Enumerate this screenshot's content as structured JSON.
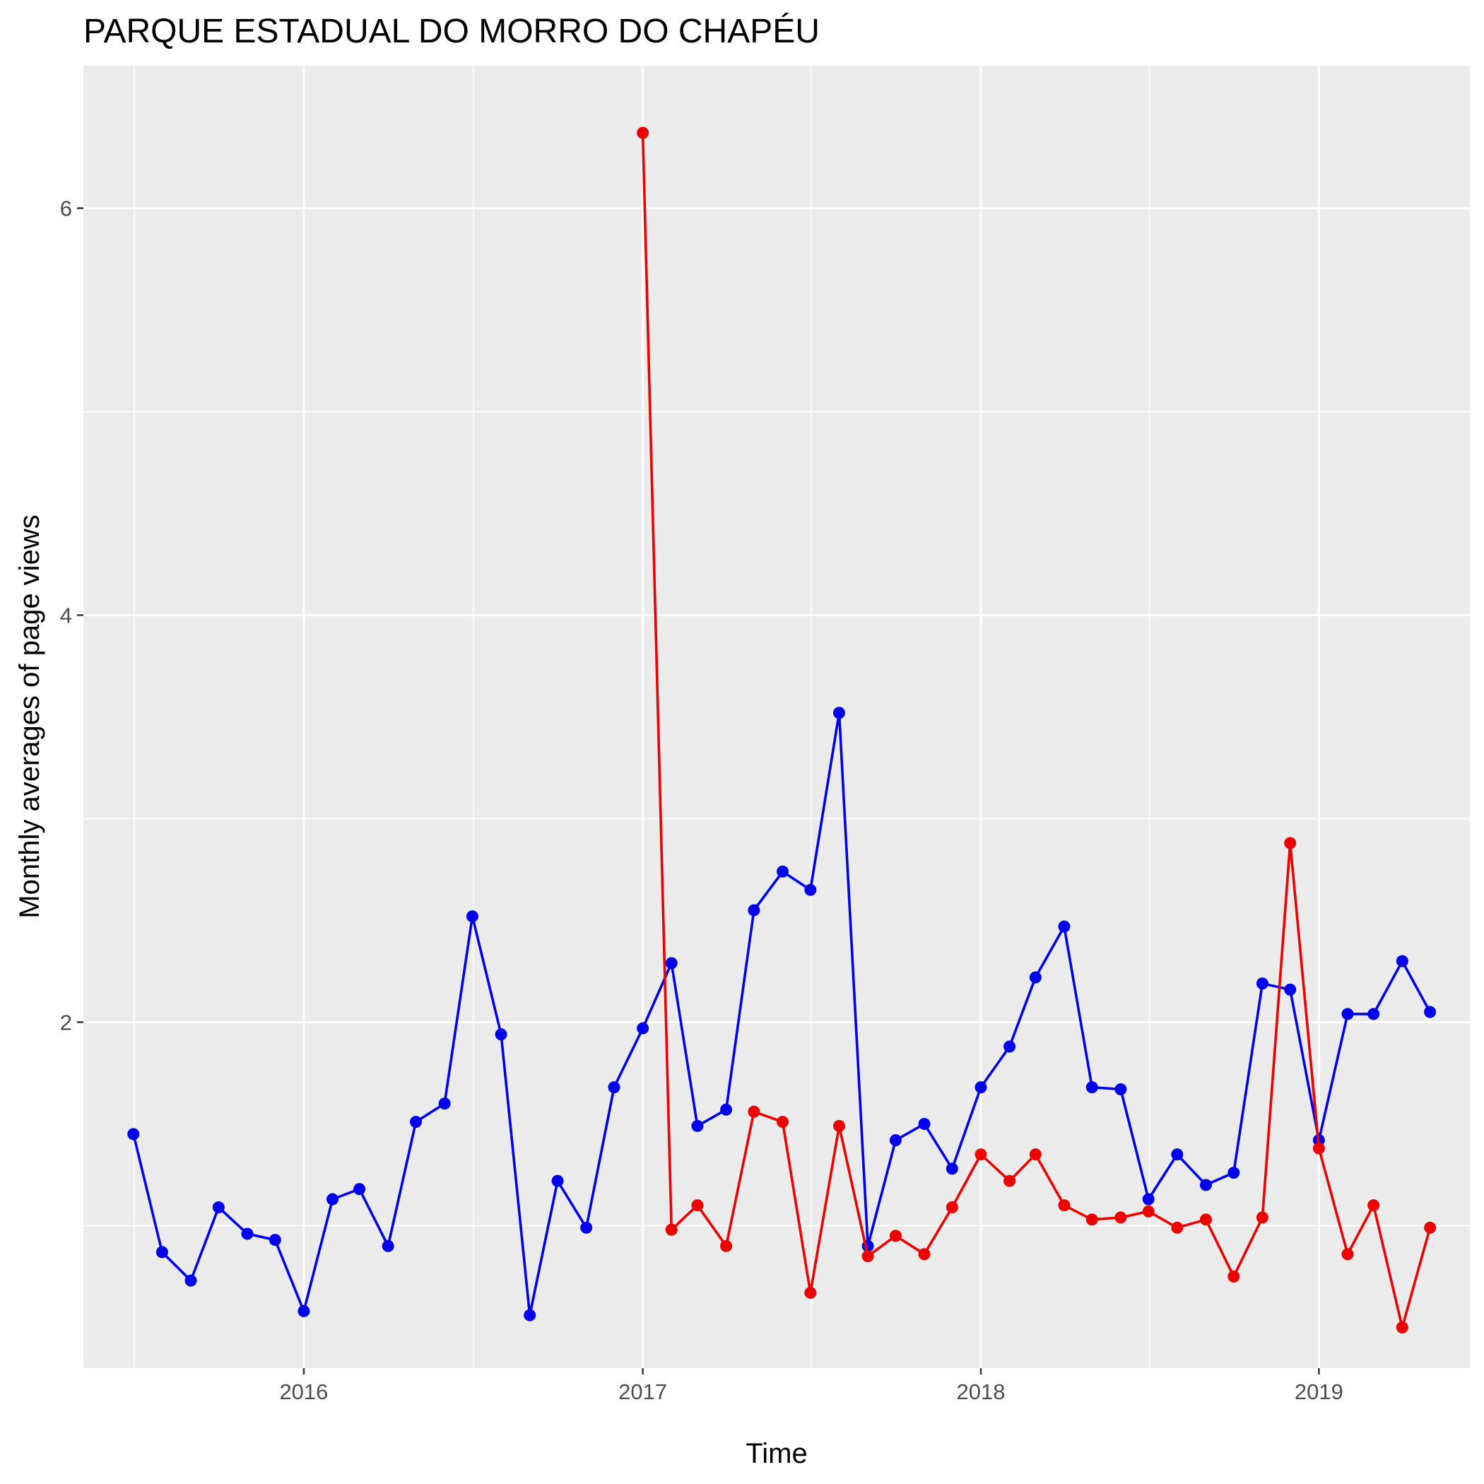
{
  "chart_data": {
    "type": "line",
    "title": "PARQUE ESTADUAL DO MORRO DO CHAPÉU",
    "xlabel": "Time",
    "ylabel": "Monthly averages of page views",
    "x_tick_labels": [
      "2016",
      "2017",
      "2018",
      "2019"
    ],
    "y_tick_labels": [
      "2",
      "4",
      "6"
    ],
    "xlim": [
      "2015-05-08",
      "2019-06-13"
    ],
    "ylim": [
      0.3,
      6.7
    ],
    "grid": true,
    "legend": "none",
    "background": "#ebebeb",
    "series": [
      {
        "color": "#0000ee",
        "points": [
          [
            "2015-07-01",
            1.45
          ],
          [
            "2015-08-01",
            0.87
          ],
          [
            "2015-09-01",
            0.73
          ],
          [
            "2015-10-01",
            1.09
          ],
          [
            "2015-11-01",
            0.96
          ],
          [
            "2015-12-01",
            0.93
          ],
          [
            "2016-01-01",
            0.58
          ],
          [
            "2016-02-01",
            1.13
          ],
          [
            "2016-03-01",
            1.18
          ],
          [
            "2016-04-01",
            0.9
          ],
          [
            "2016-05-01",
            1.51
          ],
          [
            "2016-06-01",
            1.6
          ],
          [
            "2016-07-01",
            2.52
          ],
          [
            "2016-08-01",
            1.94
          ],
          [
            "2016-09-01",
            0.56
          ],
          [
            "2016-10-01",
            1.22
          ],
          [
            "2016-11-01",
            0.99
          ],
          [
            "2016-12-01",
            1.68
          ],
          [
            "2017-01-01",
            1.97
          ],
          [
            "2017-02-01",
            2.29
          ],
          [
            "2017-03-01",
            1.49
          ],
          [
            "2017-04-01",
            1.57
          ],
          [
            "2017-05-01",
            2.55
          ],
          [
            "2017-06-01",
            2.74
          ],
          [
            "2017-07-01",
            2.65
          ],
          [
            "2017-08-01",
            3.52
          ],
          [
            "2017-09-01",
            0.9
          ],
          [
            "2017-10-01",
            1.42
          ],
          [
            "2017-11-01",
            1.5
          ],
          [
            "2017-12-01",
            1.28
          ],
          [
            "2018-01-01",
            1.68
          ],
          [
            "2018-02-01",
            1.88
          ],
          [
            "2018-03-01",
            2.22
          ],
          [
            "2018-04-01",
            2.47
          ],
          [
            "2018-05-01",
            1.68
          ],
          [
            "2018-06-01",
            1.67
          ],
          [
            "2018-07-01",
            1.13
          ],
          [
            "2018-08-01",
            1.35
          ],
          [
            "2018-09-01",
            1.2
          ],
          [
            "2018-10-01",
            1.26
          ],
          [
            "2018-11-01",
            2.19
          ],
          [
            "2018-12-01",
            2.16
          ],
          [
            "2019-01-01",
            1.42
          ],
          [
            "2019-02-01",
            2.04
          ],
          [
            "2019-03-01",
            2.04
          ],
          [
            "2019-04-01",
            2.3
          ],
          [
            "2019-05-01",
            2.05
          ]
        ]
      },
      {
        "color": "#ee0000",
        "points": [
          [
            "2017-01-01",
            6.37
          ],
          [
            "2017-02-01",
            0.98
          ],
          [
            "2017-03-01",
            1.1
          ],
          [
            "2017-04-01",
            0.9
          ],
          [
            "2017-05-01",
            1.56
          ],
          [
            "2017-06-01",
            1.51
          ],
          [
            "2017-07-01",
            0.67
          ],
          [
            "2017-08-01",
            1.49
          ],
          [
            "2017-09-01",
            0.85
          ],
          [
            "2017-10-01",
            0.95
          ],
          [
            "2017-11-01",
            0.86
          ],
          [
            "2017-12-01",
            1.09
          ],
          [
            "2018-01-01",
            1.35
          ],
          [
            "2018-02-01",
            1.22
          ],
          [
            "2018-03-01",
            1.35
          ],
          [
            "2018-04-01",
            1.1
          ],
          [
            "2018-05-01",
            1.03
          ],
          [
            "2018-06-01",
            1.04
          ],
          [
            "2018-07-01",
            1.07
          ],
          [
            "2018-08-01",
            0.99
          ],
          [
            "2018-09-01",
            1.03
          ],
          [
            "2018-10-01",
            0.75
          ],
          [
            "2018-11-01",
            1.04
          ],
          [
            "2018-12-01",
            2.88
          ],
          [
            "2019-01-01",
            1.38
          ],
          [
            "2019-02-01",
            0.86
          ],
          [
            "2019-03-01",
            1.1
          ],
          [
            "2019-04-01",
            0.5
          ],
          [
            "2019-05-01",
            0.99
          ]
        ]
      }
    ]
  }
}
